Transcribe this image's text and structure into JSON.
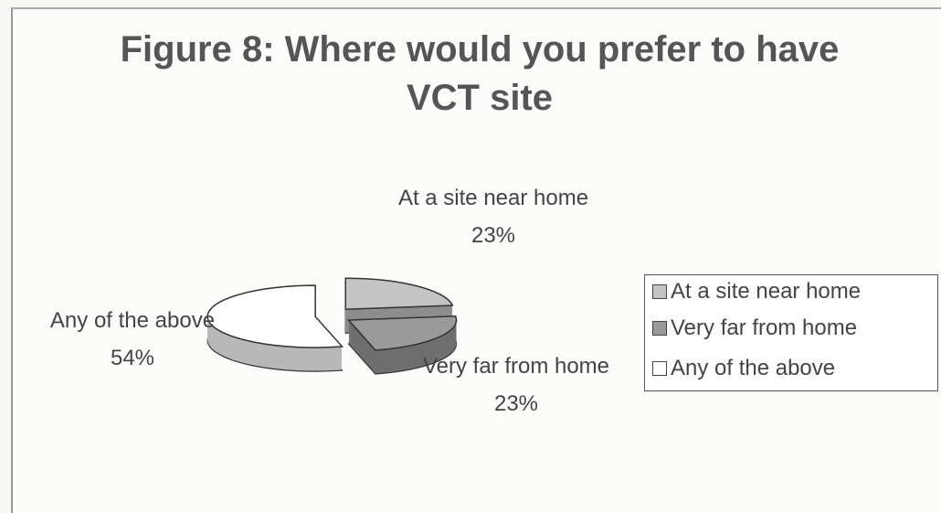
{
  "chart_data": {
    "type": "pie",
    "title": "Figure 8:  Where would you prefer to have VCT site",
    "categories": [
      "At a site near home",
      "Very far from home",
      "Any of the above"
    ],
    "values": [
      23,
      23,
      54
    ],
    "value_labels": [
      "23%",
      "23%",
      "54%"
    ],
    "colors": [
      "#c4c4c4",
      "#9a9a9a",
      "#ffffff"
    ],
    "legend": "right"
  }
}
